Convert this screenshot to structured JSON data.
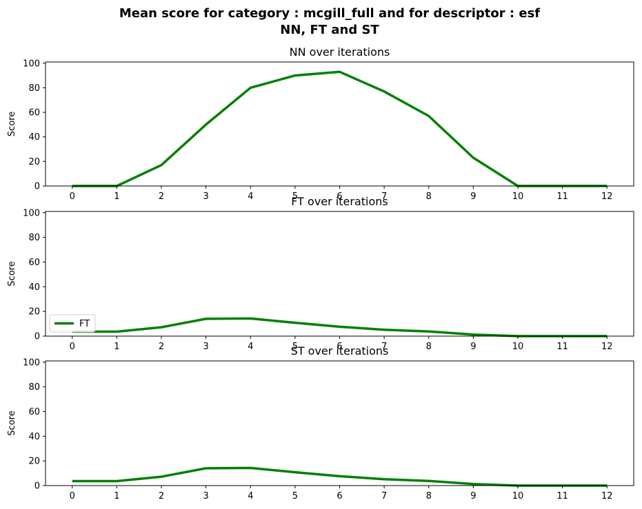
{
  "figure": {
    "title_line1": "Mean score for category : mcgill_full and for descriptor : esf",
    "title_line2": "NN, FT and ST"
  },
  "colors": {
    "line": "#008000",
    "axis": "#000000",
    "legend_border": "#d0d0d0"
  },
  "chart_data": [
    {
      "type": "line",
      "title": "NN over iterations",
      "ylabel": "Score",
      "xlabel": "",
      "x": [
        0,
        1,
        2,
        3,
        4,
        5,
        6,
        7,
        8,
        9,
        10,
        11,
        12
      ],
      "xlim": [
        -0.6,
        12.6
      ],
      "ylim": [
        0,
        101
      ],
      "yticks": [
        0,
        20,
        40,
        60,
        80,
        100
      ],
      "grid": false,
      "series": [
        {
          "values": [
            0,
            0,
            17,
            50,
            80,
            90,
            93,
            77,
            57,
            23,
            0,
            0,
            0
          ]
        }
      ]
    },
    {
      "type": "line",
      "title": "FT over iterations",
      "ylabel": "Score",
      "xlabel": "",
      "x": [
        0,
        1,
        2,
        3,
        4,
        5,
        6,
        7,
        8,
        9,
        10,
        11,
        12
      ],
      "xlim": [
        -0.6,
        12.6
      ],
      "ylim": [
        0,
        101
      ],
      "yticks": [
        0,
        20,
        40,
        60,
        80,
        100
      ],
      "grid": false,
      "legend_position": "lower-left",
      "series": [
        {
          "name": "FT",
          "values": [
            3.6,
            3.6,
            7.2,
            14,
            14.3,
            10.8,
            7.6,
            5.2,
            3.8,
            1.2,
            0,
            0,
            0
          ]
        }
      ]
    },
    {
      "type": "line",
      "title": "ST over iterations",
      "ylabel": "Score",
      "xlabel": "",
      "x": [
        0,
        1,
        2,
        3,
        4,
        5,
        6,
        7,
        8,
        9,
        10,
        11,
        12
      ],
      "xlim": [
        -0.6,
        12.6
      ],
      "ylim": [
        0,
        101
      ],
      "yticks": [
        0,
        20,
        40,
        60,
        80,
        100
      ],
      "grid": false,
      "series": [
        {
          "values": [
            3.6,
            3.6,
            7.2,
            14,
            14.3,
            10.8,
            7.6,
            5.2,
            3.8,
            1.2,
            0,
            0,
            0
          ]
        }
      ]
    }
  ]
}
